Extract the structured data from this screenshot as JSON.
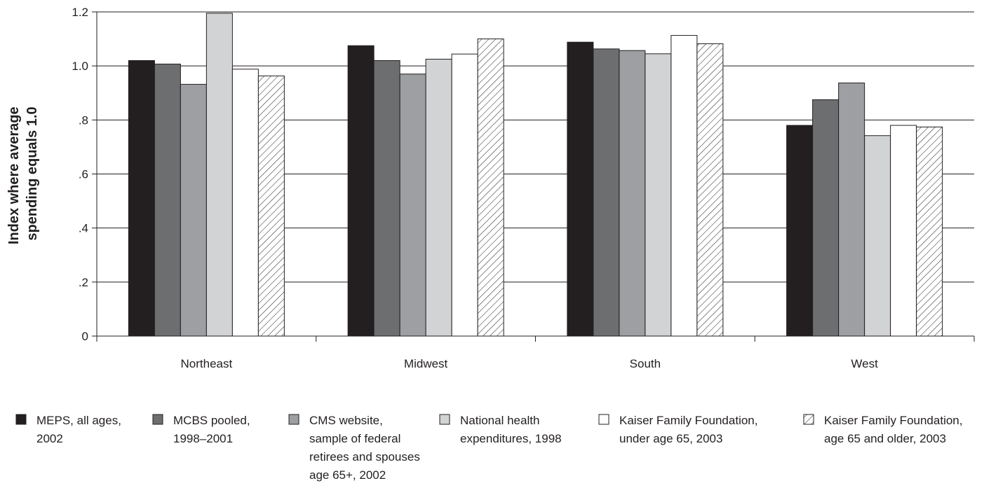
{
  "chart_data": {
    "type": "bar",
    "ylabel": [
      "Index where average",
      "spending equals 1.0"
    ],
    "ylim": [
      0,
      1.2
    ],
    "yticks": [
      {
        "value": 0,
        "label": "0"
      },
      {
        "value": 0.2,
        "label": ".2"
      },
      {
        "value": 0.4,
        "label": ".4"
      },
      {
        "value": 0.6,
        "label": ".6"
      },
      {
        "value": 0.8,
        "label": ".8"
      },
      {
        "value": 1.0,
        "label": "1.0"
      },
      {
        "value": 1.2,
        "label": "1.2"
      }
    ],
    "grid": true,
    "legend_position": "bottom",
    "categories": [
      "Northeast",
      "Midwest",
      "South",
      "West"
    ],
    "series": [
      {
        "legend_lines": [
          "MEPS, all ages,",
          "2002"
        ],
        "fill": "#231f20",
        "values": [
          1.02,
          1.075,
          1.088,
          0.78
        ]
      },
      {
        "legend_lines": [
          "MCBS pooled,",
          "1998–2001"
        ],
        "fill": "#6d6e70",
        "values": [
          1.007,
          1.02,
          1.063,
          0.875
        ]
      },
      {
        "legend_lines": [
          "CMS website,",
          "sample of federal",
          "retirees and spouses",
          "age 65+, 2002"
        ],
        "fill": "#9d9fa2",
        "values": [
          0.932,
          0.97,
          1.057,
          0.937
        ]
      },
      {
        "legend_lines": [
          "National health",
          "expenditures, 1998"
        ],
        "fill": "#d1d3d4",
        "values": [
          1.195,
          1.025,
          1.045,
          0.742
        ]
      },
      {
        "legend_lines": [
          "Kaiser Family Foundation,",
          "under age 65, 2003"
        ],
        "fill": "#ffffff",
        "values": [
          0.988,
          1.044,
          1.113,
          0.78
        ]
      },
      {
        "legend_lines": [
          "Kaiser Family Foundation,",
          "age 65 and older, 2003"
        ],
        "fill": "hatch",
        "values": [
          0.963,
          1.1,
          1.082,
          0.774
        ]
      }
    ]
  }
}
